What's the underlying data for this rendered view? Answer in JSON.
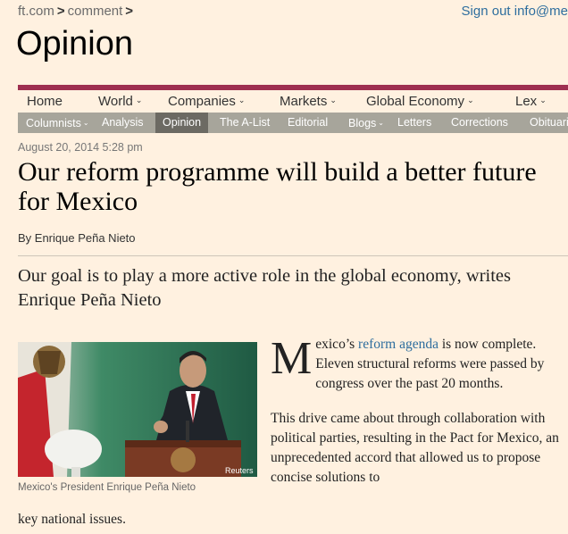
{
  "breadcrumb": {
    "home": "ft.com",
    "section": "comment"
  },
  "account": {
    "signout": "Sign out info@me"
  },
  "section": {
    "title": "Opinion"
  },
  "nav_main": [
    {
      "label": "Home",
      "caret": false
    },
    {
      "label": "World",
      "caret": true
    },
    {
      "label": "Companies",
      "caret": true
    },
    {
      "label": "Markets",
      "caret": true
    },
    {
      "label": "Global Economy",
      "caret": true
    },
    {
      "label": "Lex",
      "caret": true
    }
  ],
  "nav_sub": [
    {
      "label": "Columnists",
      "caret": true
    },
    {
      "label": "Analysis",
      "caret": false
    },
    {
      "label": "Opinion",
      "caret": false,
      "active": true
    },
    {
      "label": "The A-List",
      "caret": false
    },
    {
      "label": "Editorial",
      "caret": false
    },
    {
      "label": "Blogs",
      "caret": true
    },
    {
      "label": "Letters",
      "caret": false
    },
    {
      "label": "Corrections",
      "caret": false
    },
    {
      "label": "Obituaries",
      "caret": false
    }
  ],
  "article": {
    "timestamp": "August 20, 2014 5:28 pm",
    "headline": "Our reform programme will build a better future for Mexico",
    "byline": "By Enrique Peña Nieto",
    "standfirst": "Our goal is to play a more active role in the global economy, writes Enrique Peña Nieto",
    "image_credit": "Reuters",
    "caption": "Mexico's President Enrique Peña Nieto",
    "p1_dropcap": "M",
    "p1_before": "exico’s ",
    "p1_link": "reform agenda",
    "p1_after": " is now complete. Eleven structural reforms were passed by congress over the past 20 months.",
    "p2_main": "This drive came about through collaboration with political parties, resulting in the Pact for Mexico, an unprecedented accord that allowed us to propose concise solutions to",
    "p2_spill": "key national issues."
  },
  "colors": {
    "accent": "#9e2f50",
    "page_bg": "#fff1e0",
    "subnav_bg": "#a7a59b",
    "link": "#2e6e9e"
  }
}
